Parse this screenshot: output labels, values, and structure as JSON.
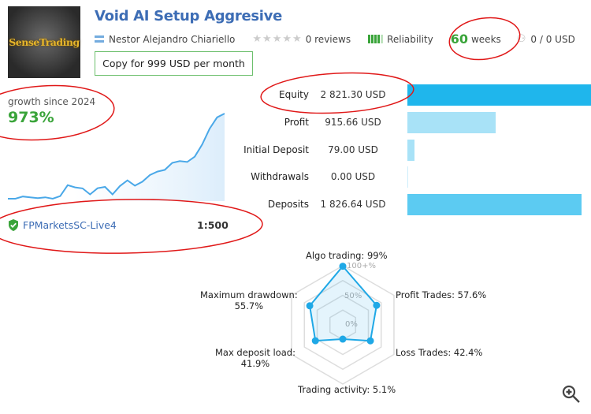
{
  "header": {
    "logo_text": "SenseTrading",
    "title": "Void AI Setup Aggresive",
    "author": "Nestor Alejandro Chiariello",
    "reviews": "0 reviews",
    "reliability_label": "Reliability",
    "reliability_level": 4,
    "weeks_value": "60",
    "weeks_label": "weeks",
    "subscribers": "0 / 0 USD",
    "copy_button": "Copy for 999 USD per month"
  },
  "growth": {
    "label": "growth since 2024",
    "value": "973%",
    "broker": "FPMarketsSC-Live4",
    "leverage": "1:500",
    "series": [
      0,
      0,
      25,
      16,
      7,
      16,
      0,
      30,
      155,
      130,
      118,
      50,
      120,
      135,
      50,
      145,
      210,
      150,
      195,
      270,
      310,
      330,
      410,
      430,
      420,
      480,
      620,
      800,
      930,
      973
    ]
  },
  "balances": [
    {
      "label": "Equity",
      "value": "2 821.30 USD",
      "fill": 1.0,
      "color": "#1fb6ec"
    },
    {
      "label": "Profit",
      "value": "915.66 USD",
      "fill": 0.48,
      "color": "#a8e2f7"
    },
    {
      "label": "Initial Deposit",
      "value": "79.00 USD",
      "fill": 0.04,
      "color": "#a8e2f7"
    },
    {
      "label": "Withdrawals",
      "value": "0.00 USD",
      "fill": 0,
      "color": "#a8e2f7"
    },
    {
      "label": "Deposits",
      "value": "1 826.64 USD",
      "fill": 0.95,
      "color": "#5ccbf2"
    }
  ],
  "radar": {
    "axis_labels": {
      "full": "100+%",
      "half": "50%",
      "zero": "0%"
    },
    "metrics": [
      {
        "label": "Algo trading: 99%",
        "value": 99
      },
      {
        "label": "Profit Trades: 57.6%",
        "value": 57.6
      },
      {
        "label": "Loss Trades: 42.4%",
        "value": 42.4
      },
      {
        "label": "Trading activity: 5.1%",
        "value": 5.1
      },
      {
        "label": "Max deposit load:",
        "value_text": "41.9%",
        "value": 41.9
      },
      {
        "label": "Maximum drawdown:",
        "value_text": "55.7%",
        "value": 55.7
      }
    ],
    "color": "#1fa8e6"
  }
}
